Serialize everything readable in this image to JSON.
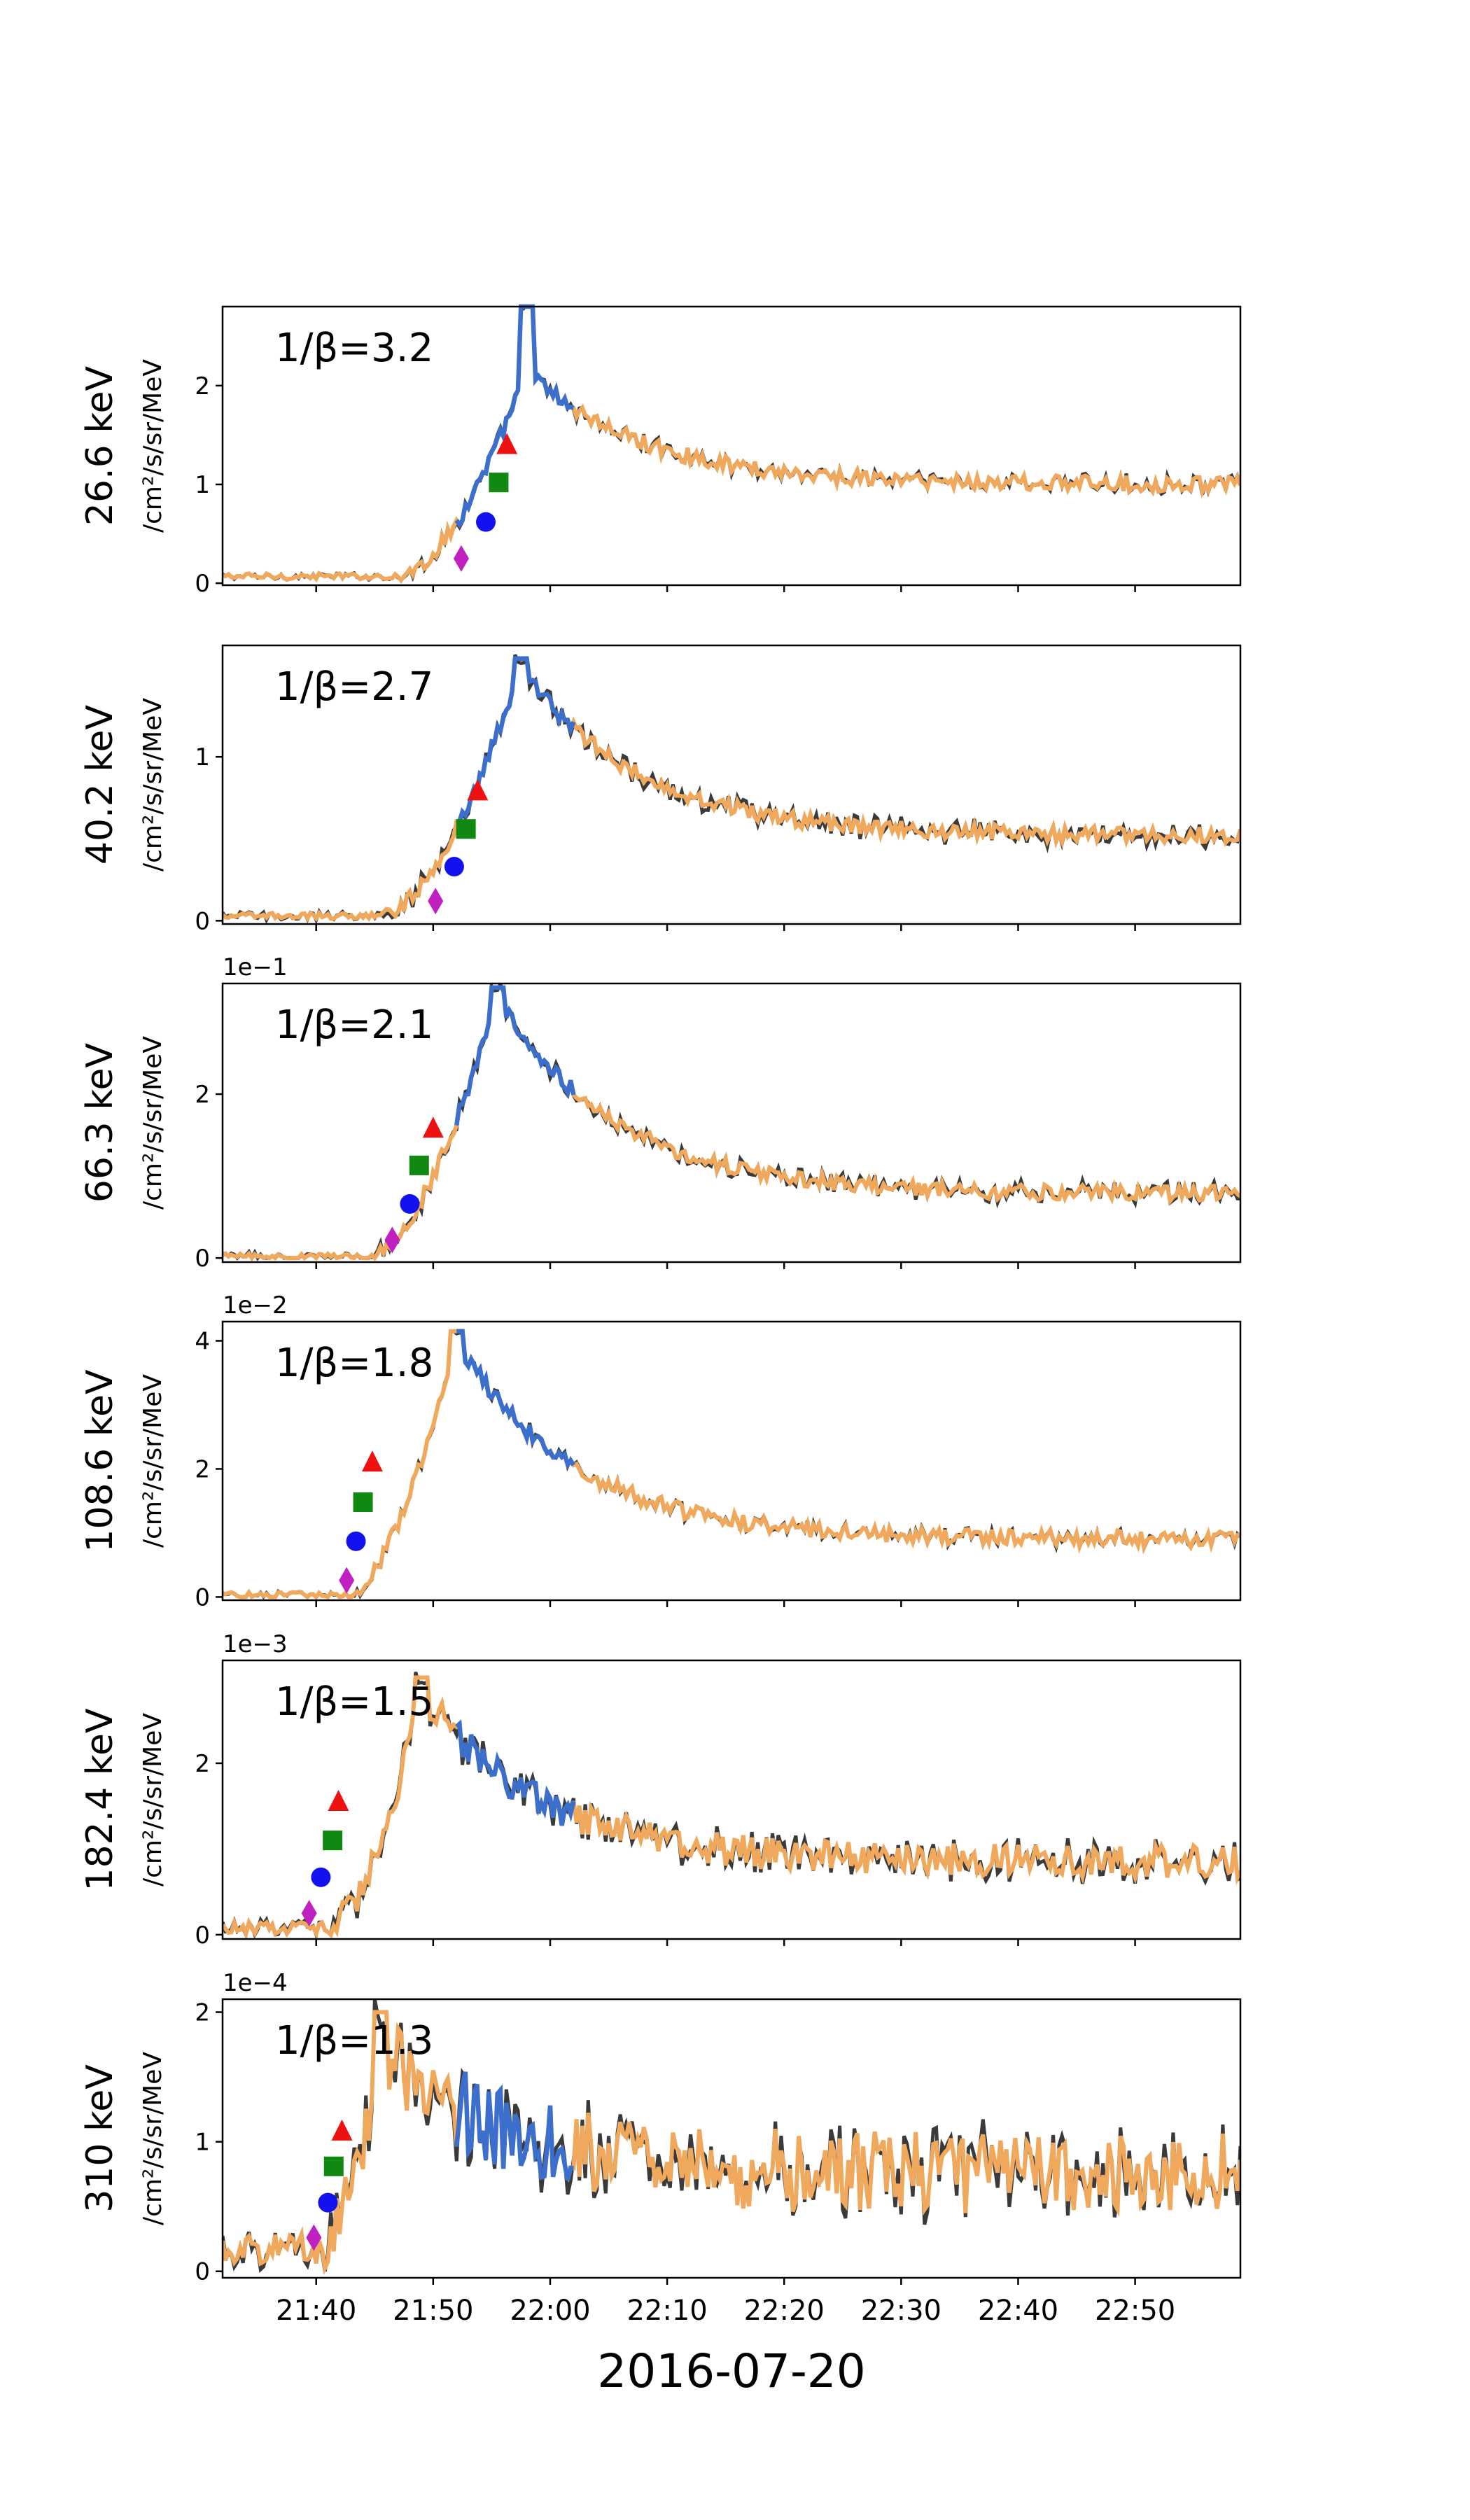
{
  "colors": {
    "observed": "#3a3a3a",
    "fitted": "#f0a95c",
    "background": "#3b6fcb",
    "diamond": "#c020c0",
    "circle": "#1212ee",
    "square": "#118811",
    "triangle": "#ee1111"
  },
  "chart_data": {
    "type": "line",
    "xlabel": "2016-07-20",
    "x_range": [
      "21:32",
      "22:59"
    ],
    "x_ticks": [
      "21:40",
      "21:50",
      "22:00",
      "22:10",
      "22:20",
      "22:30",
      "22:40",
      "22:50"
    ],
    "background_interval": [
      "21:52",
      "22:02"
    ],
    "panels": [
      {
        "energy": "26.6 keV",
        "ylabel": "/cm²/s/sr/MeV",
        "beta": "1/β=3.2",
        "multiplier": "",
        "ylim": [
          -0.02,
          2.8
        ],
        "yticks": [
          "0",
          "1",
          "2"
        ],
        "baseline": 0.07,
        "onset_min": 47.0,
        "peak_min": 58.0,
        "peak": 2.8,
        "plateau": 2.15,
        "tail": 1.0,
        "noise": 0.05,
        "obs_dev": 0.03,
        "markers": {
          "diamond": [
            52.4,
            0.25
          ],
          "circle": [
            54.5,
            0.62
          ],
          "square": [
            55.6,
            1.02
          ],
          "triangle": [
            56.3,
            1.4
          ]
        }
      },
      {
        "energy": "40.2 keV",
        "ylabel": "/cm²/s/sr/MeV",
        "beta": "1/β=2.7",
        "multiplier": "",
        "ylim": [
          -0.02,
          1.68
        ],
        "yticks": [
          "0",
          "1"
        ],
        "baseline": 0.03,
        "onset_min": 45.5,
        "peak_min": 57.5,
        "peak": 1.6,
        "plateau": 1.55,
        "tail": 0.52,
        "noise": 0.03,
        "obs_dev": 0.04,
        "markers": {
          "diamond": [
            50.2,
            0.12
          ],
          "circle": [
            51.8,
            0.33
          ],
          "square": [
            52.8,
            0.56
          ],
          "triangle": [
            53.8,
            0.79
          ]
        }
      },
      {
        "energy": "66.3 keV",
        "ylabel": "/cm²/s/sr/MeV",
        "beta": "1/β=2.1",
        "multiplier": "1e−1",
        "ylim": [
          -0.05,
          3.35
        ],
        "yticks": [
          "0",
          "2"
        ],
        "baseline": 0.02,
        "onset_min": 44.5,
        "peak_min": 55.5,
        "peak": 3.3,
        "plateau": 3.2,
        "tail": 0.78,
        "noise": 0.06,
        "obs_dev": 0.06,
        "markers": {
          "diamond": [
            46.5,
            0.22
          ],
          "circle": [
            48.0,
            0.66
          ],
          "square": [
            48.8,
            1.13
          ],
          "triangle": [
            50.0,
            1.58
          ]
        }
      },
      {
        "energy": "108.6 keV",
        "ylabel": "/cm²/s/sr/MeV",
        "beta": "1/β=1.8",
        "multiplier": "1e−2",
        "ylim": [
          -0.05,
          4.3
        ],
        "yticks": [
          "0",
          "2",
          "4"
        ],
        "baseline": 0.03,
        "onset_min": 42.5,
        "peak_min": 52.0,
        "peak": 4.15,
        "plateau": 4.0,
        "tail": 0.9,
        "noise": 0.08,
        "obs_dev": 0.04,
        "markers": {
          "diamond": [
            42.6,
            0.26
          ],
          "circle": [
            43.4,
            0.87
          ],
          "square": [
            44.0,
            1.48
          ],
          "triangle": [
            44.8,
            2.1
          ]
        }
      },
      {
        "energy": "182.4 keV",
        "ylabel": "/cm²/s/sr/MeV",
        "beta": "1/β=1.5",
        "multiplier": "1e−3",
        "ylim": [
          -0.05,
          3.2
        ],
        "yticks": [
          "0",
          "2"
        ],
        "baseline": 0.08,
        "onset_min": 41.0,
        "peak_min": 49.0,
        "peak": 3.0,
        "plateau": 2.85,
        "tail": 0.85,
        "noise": 0.12,
        "obs_dev": 0.1,
        "markers": {
          "diamond": [
            39.4,
            0.25
          ],
          "circle": [
            40.4,
            0.67
          ],
          "square": [
            41.4,
            1.1
          ],
          "triangle": [
            41.9,
            1.55
          ]
        }
      },
      {
        "energy": "310 keV",
        "ylabel": "/cm²/s/sr/MeV",
        "beta": "1/β=1.3",
        "multiplier": "1e−4",
        "ylim": [
          -0.05,
          2.1
        ],
        "yticks": [
          "0",
          "1",
          "2"
        ],
        "baseline": 0.17,
        "onset_min": 40.5,
        "peak_min": 45.5,
        "peak": 2.0,
        "plateau": 1.75,
        "tail": 0.75,
        "noise": 0.2,
        "obs_dev": 0.12,
        "markers": {
          "diamond": [
            39.8,
            0.26
          ],
          "circle": [
            41.0,
            0.53
          ],
          "square": [
            41.5,
            0.81
          ],
          "triangle": [
            42.2,
            1.08
          ]
        }
      }
    ]
  }
}
